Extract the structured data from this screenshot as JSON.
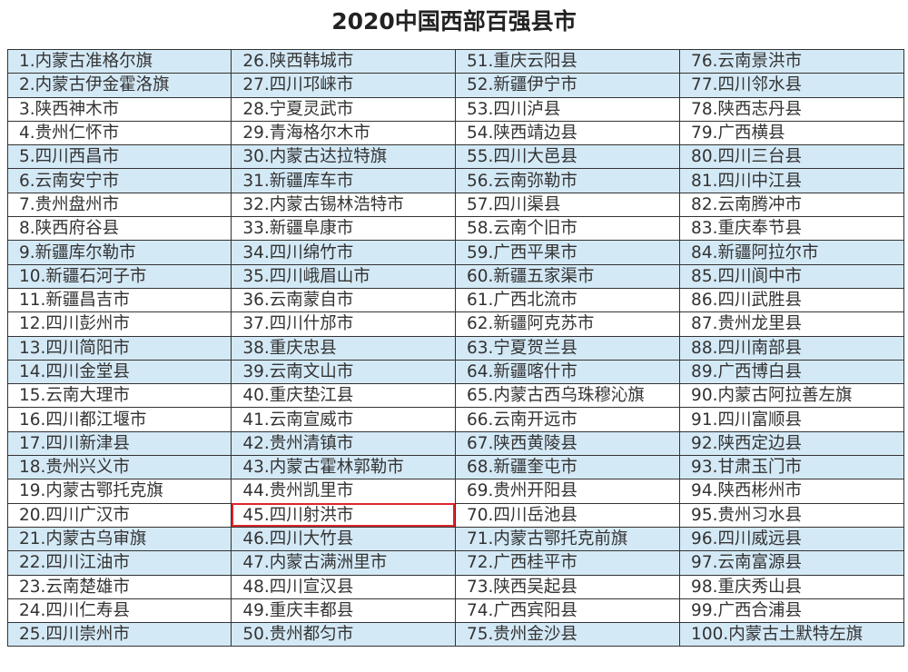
{
  "title": "2020中国西部百强县市",
  "highlight_color": "#e0242a",
  "row_blue_color": "#d4e9f6",
  "highlighted": "45.四川射洪市",
  "columns": [
    [
      "1.内蒙古准格尔旗",
      "2.内蒙古伊金霍洛旗",
      "3.陕西神木市",
      "4.贵州仁怀市",
      "5.四川西昌市",
      "6.云南安宁市",
      "7.贵州盘州市",
      "8.陕西府谷县",
      "9.新疆库尔勒市",
      "10.新疆石河子市",
      "11.新疆昌吉市",
      "12.四川彭州市",
      "13.四川简阳市",
      "14.四川金堂县",
      "15.云南大理市",
      "16.四川都江堰市",
      "17.四川新津县",
      "18.贵州兴义市",
      "19.内蒙古鄂托克旗",
      "20.四川广汉市",
      "21.内蒙古乌审旗",
      "22.四川江油市",
      "23.云南楚雄市",
      "24.四川仁寿县",
      "25.四川崇州市"
    ],
    [
      "26.陕西韩城市",
      "27.四川邛崃市",
      "28.宁夏灵武市",
      "29.青海格尔木市",
      "30.内蒙古达拉特旗",
      "31.新疆库车市",
      "32.内蒙古锡林浩特市",
      "33.新疆阜康市",
      "34.四川绵竹市",
      "35.四川峨眉山市",
      "36.云南蒙自市",
      "37.四川什邡市",
      "38.重庆忠县",
      "39.云南文山市",
      "40.重庆垫江县",
      "41.云南宣威市",
      "42.贵州清镇市",
      "43.内蒙古霍林郭勒市",
      "44.贵州凯里市",
      "45.四川射洪市",
      "46.四川大竹县",
      "47.内蒙古满洲里市",
      "48.四川宣汉县",
      "49.重庆丰都县",
      "50.贵州都匀市"
    ],
    [
      "51.重庆云阳县",
      "52.新疆伊宁市",
      "53.四川泸县",
      "54.陕西靖边县",
      "55.四川大邑县",
      "56.云南弥勒市",
      "57.四川渠县",
      "58.云南个旧市",
      "59.广西平果市",
      "60.新疆五家渠市",
      "61.广西北流市",
      "62.新疆阿克苏市",
      "63.宁夏贺兰县",
      "64.新疆喀什市",
      "65.内蒙古西乌珠穆沁旗",
      "66.云南开远市",
      "67.陕西黄陵县",
      "68.新疆奎屯市",
      "69.贵州开阳县",
      "70.四川岳池县",
      "71.内蒙古鄂托克前旗",
      "72.广西桂平市",
      "73.陕西吴起县",
      "74.广西宾阳县",
      "75.贵州金沙县"
    ],
    [
      "76.云南景洪市",
      "77.四川邻水县",
      "78.陕西志丹县",
      "79.广西横县",
      "80.四川三台县",
      "81.四川中江县",
      "82.云南腾冲市",
      "83.重庆奉节县",
      "84.新疆阿拉尔市",
      "85.四川阆中市",
      "86.四川武胜县",
      "87.贵州龙里县",
      "88.四川南部县",
      "89.广西博白县",
      "90.内蒙古阿拉善左旗",
      "91.四川富顺县",
      "92.陕西定边县",
      "93.甘肃玉门市",
      "94.陕西彬州市",
      "95.贵州习水县",
      "96.四川威远县",
      "97.云南富源县",
      "98.重庆秀山县",
      "99.广西合浦县",
      "100.内蒙古土默特左旗"
    ]
  ]
}
